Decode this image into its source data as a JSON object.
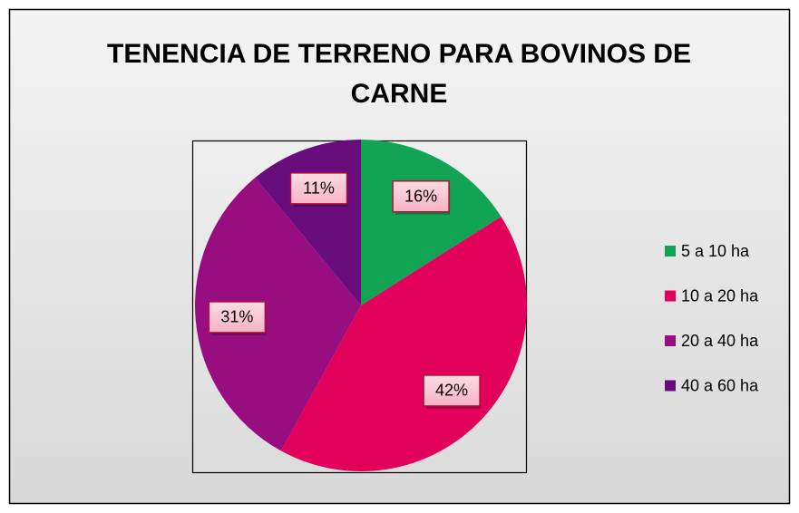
{
  "chart_data": {
    "type": "pie",
    "title": "TENENCIA DE TERRENO PARA BOVINOS DE CARNE",
    "categories": [
      "5 a 10 ha",
      "10 a 20 ha",
      "20 a 40 ha",
      "40 a 60 ha"
    ],
    "values": [
      16,
      42,
      31,
      11
    ],
    "value_labels": [
      "16%",
      "42%",
      "31%",
      "11%"
    ],
    "colors": [
      "#12a455",
      "#e2015b",
      "#980d7f",
      "#690c7c"
    ],
    "legend": "right"
  }
}
